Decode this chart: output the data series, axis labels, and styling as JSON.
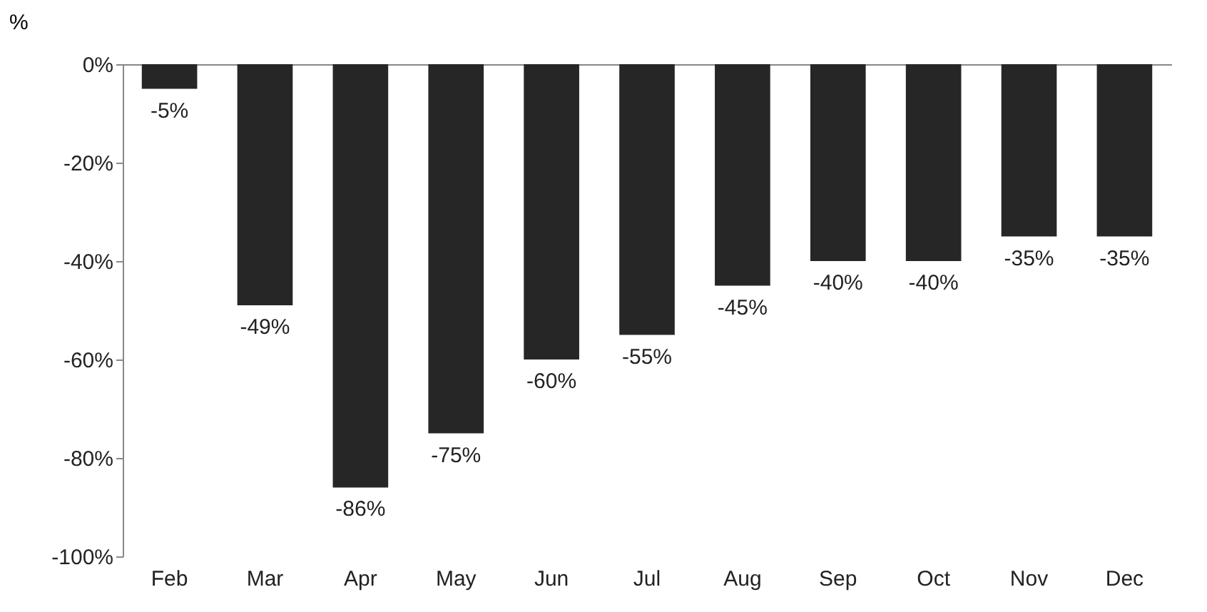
{
  "chart_data": {
    "type": "bar",
    "ylabel": "%",
    "categories": [
      "Feb",
      "Mar",
      "Apr",
      "May",
      "Jun",
      "Jul",
      "Aug",
      "Sep",
      "Oct",
      "Nov",
      "Dec"
    ],
    "values": [
      -5,
      -49,
      -86,
      -75,
      -60,
      -55,
      -45,
      -40,
      -40,
      -35,
      -35
    ],
    "value_labels": [
      "-5%",
      "-49%",
      "-86%",
      "-75%",
      "-60%",
      "-55%",
      "-45%",
      "-40%",
      "-40%",
      "-35%",
      "-35%"
    ],
    "color": "#262626",
    "ylim": [
      -100,
      0
    ],
    "yticks": [
      {
        "value": -100,
        "label": "-100%"
      },
      {
        "value": -80,
        "label": "-80%"
      },
      {
        "value": -60,
        "label": "-60%"
      },
      {
        "value": -40,
        "label": "-40%"
      },
      {
        "value": -20,
        "label": "-20%"
      },
      {
        "value": 0,
        "label": "0%"
      }
    ],
    "grid": false
  }
}
